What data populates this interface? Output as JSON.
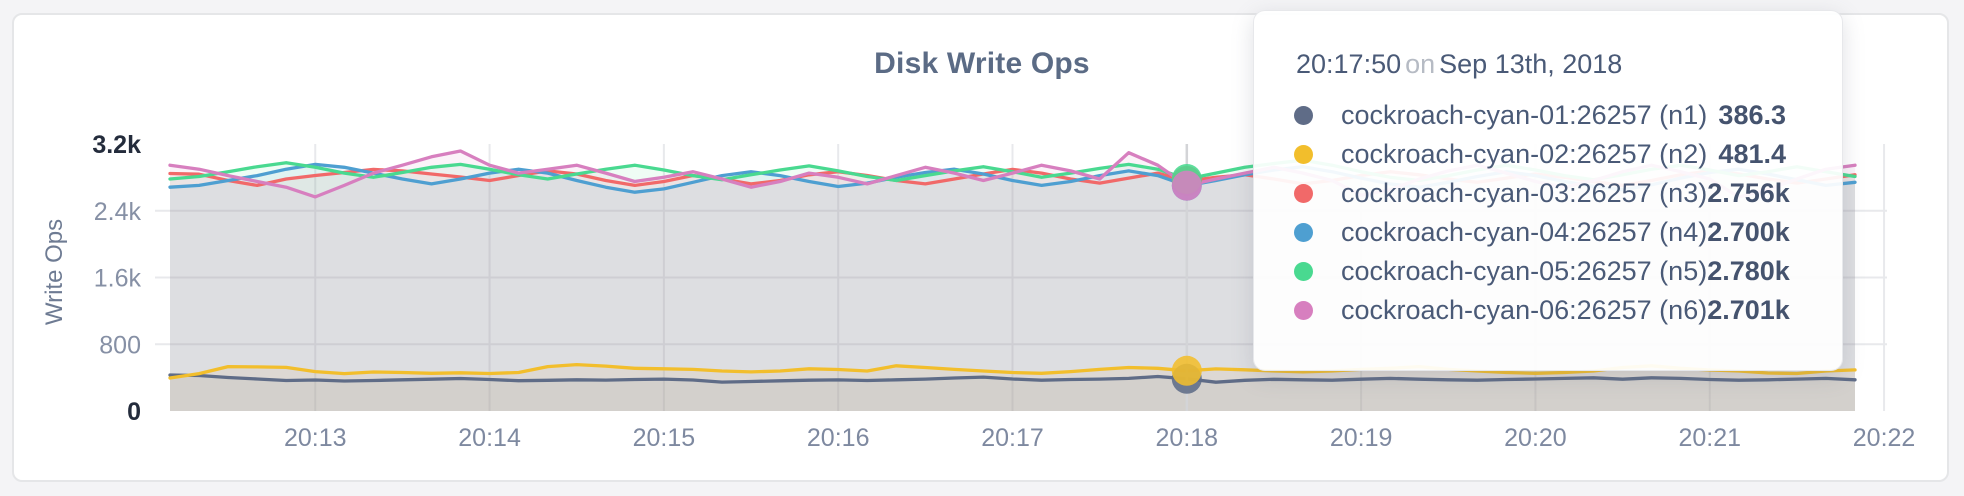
{
  "page": {
    "background": "#f4f4f6"
  },
  "card": {
    "background": "#ffffff",
    "border_color": "#e5e6e8"
  },
  "tooltip": {
    "time": "20:17:50",
    "on_word": "on",
    "date": "Sep 13th, 2018",
    "rows": [
      {
        "name": "cockroach-cyan-01:26257 (n1)",
        "value": "386.3",
        "color": "#5F6C87"
      },
      {
        "name": "cockroach-cyan-02:26257 (n2)",
        "value": "481.4",
        "color": "#F2BE2C"
      },
      {
        "name": "cockroach-cyan-03:26257 (n3)",
        "value": "2.756k",
        "color": "#F16969"
      },
      {
        "name": "cockroach-cyan-04:26257 (n4)",
        "value": "2.700k",
        "color": "#4E9FD1"
      },
      {
        "name": "cockroach-cyan-05:26257 (n5)",
        "value": "2.780k",
        "color": "#49D990"
      },
      {
        "name": "cockroach-cyan-06:26257 (n6)",
        "value": "2.701k",
        "color": "#D77FBF"
      }
    ]
  },
  "chart_data": {
    "type": "line",
    "title": "Disk Write Ops",
    "ylabel": "Write Ops",
    "xlabel": "",
    "ylim": [
      0,
      3200
    ],
    "grid": true,
    "x_start": "20:12:10",
    "x_step_seconds": 10,
    "x_ticks": [
      "20:13",
      "20:14",
      "20:15",
      "20:16",
      "20:17",
      "20:18",
      "20:19",
      "20:20",
      "20:21",
      "20:22"
    ],
    "y_ticks": [
      {
        "label": "0",
        "value": 0,
        "grid": false,
        "strong": true
      },
      {
        "label": "800",
        "value": 800,
        "grid": true,
        "strong": false
      },
      {
        "label": "1.6k",
        "value": 1600,
        "grid": true,
        "strong": false
      },
      {
        "label": "2.4k",
        "value": 2400,
        "grid": true,
        "strong": false
      },
      {
        "label": "3.2k",
        "value": 3200,
        "grid": false,
        "strong": true
      }
    ],
    "highlight_index": 35,
    "highlight_time": "20:17:50",
    "series": [
      {
        "name": "cockroach-cyan-01:26257 (n1)",
        "color": "#5F6C87",
        "values": [
          432,
          425,
          402,
          383,
          366,
          372,
          360,
          366,
          374,
          381,
          389,
          377,
          363,
          368,
          374,
          370,
          377,
          382,
          372,
          346,
          354,
          362,
          369,
          373,
          366,
          374,
          382,
          396,
          406,
          384,
          369,
          377,
          382,
          391,
          414,
          386.3,
          345,
          368,
          380,
          374,
          369,
          381,
          391,
          381,
          374,
          369,
          377,
          384,
          391,
          398,
          381,
          398,
          391,
          377,
          369,
          374,
          382,
          391,
          374
        ]
      },
      {
        "name": "cockroach-cyan-02:26257 (n2)",
        "color": "#F2BE2C",
        "values": [
          395,
          448,
          532,
          528,
          522,
          472,
          448,
          468,
          462,
          452,
          458,
          449,
          462,
          532,
          556,
          538,
          512,
          506,
          498,
          479,
          469,
          479,
          506,
          497,
          479,
          542,
          521,
          498,
          479,
          462,
          452,
          472,
          498,
          521,
          512,
          481.4,
          505,
          494,
          479,
          469,
          479,
          498,
          512,
          532,
          498,
          479,
          462,
          452,
          462,
          479,
          521,
          542,
          512,
          491,
          479,
          456,
          449,
          479,
          492
        ]
      },
      {
        "name": "cockroach-cyan-03:26257 (n3)",
        "color": "#F16969",
        "values": [
          2846,
          2838,
          2762,
          2704,
          2781,
          2822,
          2858,
          2896,
          2878,
          2841,
          2804,
          2762,
          2822,
          2878,
          2841,
          2762,
          2704,
          2751,
          2822,
          2781,
          2722,
          2762,
          2831,
          2868,
          2822,
          2762,
          2722,
          2781,
          2841,
          2896,
          2851,
          2781,
          2731,
          2791,
          2851,
          2756,
          2801,
          2831,
          2781,
          2722,
          2762,
          2822,
          2868,
          2831,
          2781,
          2741,
          2791,
          2841,
          2801,
          2751,
          2704,
          2762,
          2831,
          2878,
          2841,
          2781,
          2731,
          2781,
          2831
        ]
      },
      {
        "name": "cockroach-cyan-04:26257 (n4)",
        "color": "#4E9FD1",
        "values": [
          2682,
          2704,
          2762,
          2821,
          2898,
          2956,
          2921,
          2851,
          2781,
          2722,
          2781,
          2851,
          2898,
          2851,
          2762,
          2682,
          2622,
          2662,
          2741,
          2821,
          2868,
          2821,
          2751,
          2691,
          2731,
          2801,
          2858,
          2898,
          2841,
          2762,
          2704,
          2751,
          2821,
          2878,
          2821,
          2700,
          2762,
          2831,
          2888,
          2928,
          2868,
          2791,
          2722,
          2682,
          2741,
          2811,
          2868,
          2821,
          2751,
          2691,
          2652,
          2711,
          2791,
          2858,
          2898,
          2841,
          2771,
          2704,
          2741
        ]
      },
      {
        "name": "cockroach-cyan-05:26257 (n5)",
        "color": "#49D990",
        "values": [
          2781,
          2811,
          2868,
          2928,
          2976,
          2921,
          2851,
          2801,
          2858,
          2921,
          2956,
          2898,
          2831,
          2781,
          2841,
          2898,
          2946,
          2888,
          2821,
          2771,
          2831,
          2888,
          2938,
          2878,
          2811,
          2762,
          2821,
          2878,
          2928,
          2868,
          2801,
          2851,
          2908,
          2956,
          2898,
          2780,
          2851,
          2921,
          2966,
          3006,
          2946,
          2868,
          2801,
          2762,
          2821,
          2888,
          2946,
          2888,
          2821,
          2771,
          2831,
          2898,
          2946,
          2888,
          2821,
          2868,
          2928,
          2868,
          2811
        ]
      },
      {
        "name": "cockroach-cyan-06:26257 (n6)",
        "color": "#D77FBF",
        "values": [
          2946,
          2898,
          2821,
          2751,
          2682,
          2566,
          2704,
          2851,
          2946,
          3046,
          3116,
          2946,
          2851,
          2898,
          2946,
          2851,
          2751,
          2801,
          2868,
          2781,
          2682,
          2751,
          2851,
          2801,
          2722,
          2821,
          2921,
          2851,
          2762,
          2851,
          2946,
          2878,
          2781,
          3096,
          2946,
          2701,
          2781,
          2851,
          2921,
          2851,
          2762,
          2586,
          2652,
          2781,
          2878,
          2946,
          2851,
          2751,
          2682,
          2762,
          2868,
          2946,
          2868,
          2781,
          2566,
          2652,
          2781,
          2898,
          2946
        ]
      }
    ]
  }
}
